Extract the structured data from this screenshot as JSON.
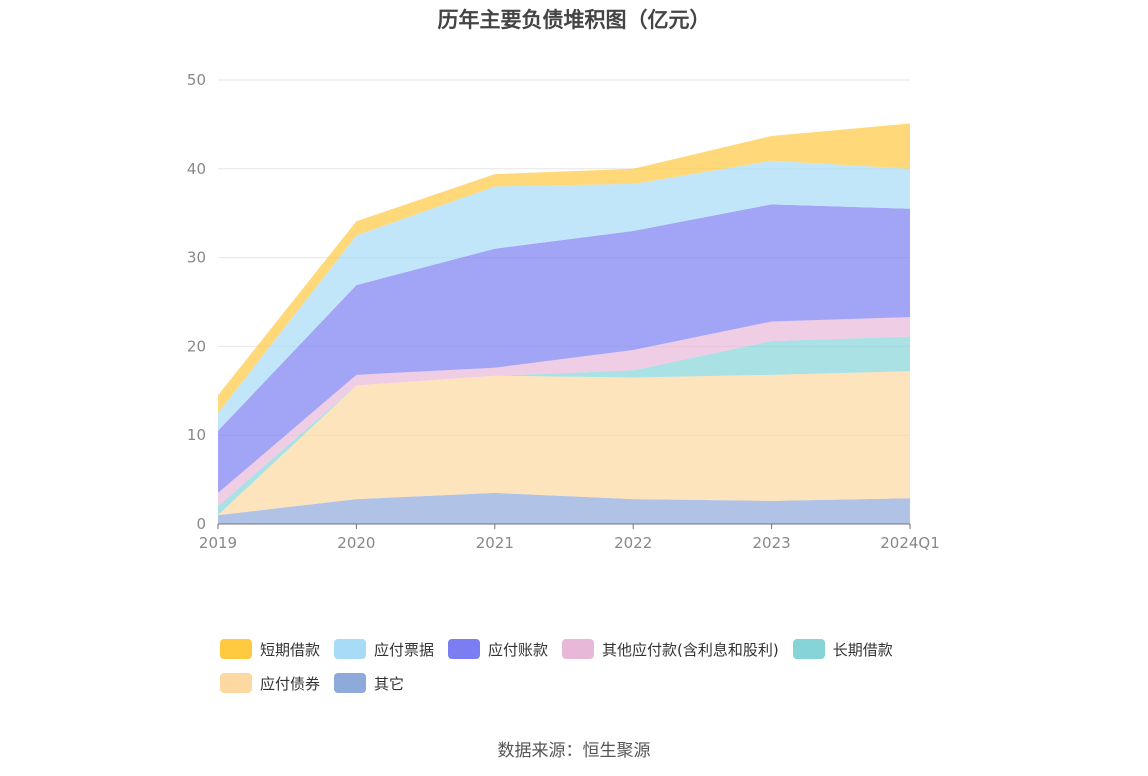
{
  "chart_data": {
    "type": "area",
    "title": "历年主要负债堆积图（亿元）",
    "x": [
      "2019",
      "2020",
      "2021",
      "2022",
      "2023",
      "2024Q1"
    ],
    "ylim": [
      0,
      50
    ],
    "yticks": [
      0,
      10,
      20,
      30,
      40,
      50
    ],
    "grid": true,
    "legend_position": "bottom",
    "stacked": true,
    "series": [
      {
        "name": "其它",
        "color": "#8eaadb",
        "values": [
          1.0,
          2.8,
          3.5,
          2.8,
          2.6,
          2.9
        ]
      },
      {
        "name": "应付债券",
        "color": "#fdd8a0",
        "values": [
          0.0,
          12.8,
          13.2,
          13.7,
          14.2,
          14.3
        ]
      },
      {
        "name": "长期借款",
        "color": "#86d4d8",
        "values": [
          1.0,
          0.0,
          0.0,
          0.8,
          3.8,
          3.9
        ]
      },
      {
        "name": "其他应付款(含利息和股利)",
        "color": "#e8b8d8",
        "values": [
          1.5,
          1.2,
          0.9,
          2.3,
          2.2,
          2.2
        ]
      },
      {
        "name": "应付账款",
        "color": "#7b7ef2",
        "values": [
          7.0,
          10.1,
          13.4,
          13.4,
          13.2,
          12.2
        ]
      },
      {
        "name": "应付票据",
        "color": "#a8dcf6",
        "values": [
          2.0,
          5.6,
          7.0,
          5.3,
          4.9,
          4.5
        ]
      },
      {
        "name": "短期借款",
        "color": "#ffc940",
        "values": [
          2.0,
          1.6,
          1.4,
          1.7,
          2.8,
          5.1
        ]
      }
    ]
  },
  "legend_order": [
    {
      "name": "短期借款",
      "color": "#ffc940"
    },
    {
      "name": "应付票据",
      "color": "#a8dcf6"
    },
    {
      "name": "应付账款",
      "color": "#7b7ef2"
    },
    {
      "name": "其他应付款(含利息和股利)",
      "color": "#e8b8d8"
    },
    {
      "name": "长期借款",
      "color": "#86d4d8"
    },
    {
      "name": "应付债券",
      "color": "#fdd8a0"
    },
    {
      "name": "其它",
      "color": "#8eaadb"
    }
  ],
  "source": "数据来源：恒生聚源"
}
